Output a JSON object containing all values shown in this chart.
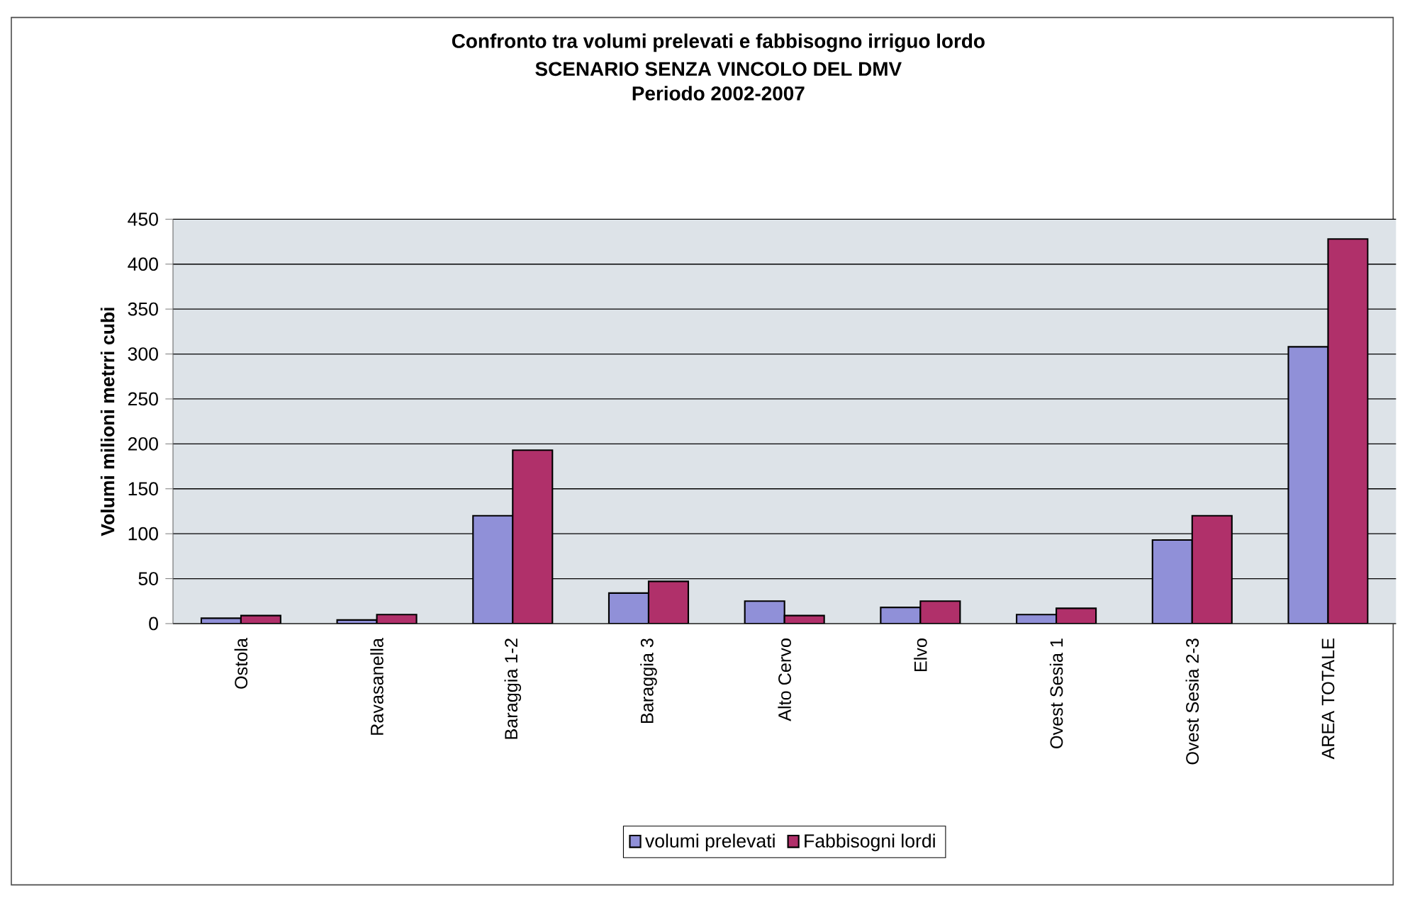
{
  "chart_data": {
    "type": "bar",
    "title": "Confronto tra volumi prelevati e fabbisogno irriguo lordo",
    "subtitle": "SCENARIO SENZA VINCOLO DEL DMV\nPeriodo 2002-2007",
    "ylabel": "Volumi milioni metrri cubi",
    "categories": [
      "Ostola",
      "Ravasanella",
      "Baraggia 1-2",
      "Baraggia 3",
      "Alto Cervo",
      "Elvo",
      "Ovest Sesia 1",
      "Ovest Sesia 2-3",
      "AREA TOTALE"
    ],
    "series": [
      {
        "name": "volumi prelevati",
        "color": "#9090d8",
        "values": [
          6,
          4,
          120,
          34,
          25,
          18,
          10,
          93,
          308
        ]
      },
      {
        "name": "Fabbisogni lordi",
        "color": "#b0306a",
        "values": [
          9,
          10,
          193,
          47,
          9,
          25,
          17,
          120,
          428
        ]
      }
    ],
    "ylim": [
      0,
      450
    ],
    "yticks": [
      0,
      50,
      100,
      150,
      200,
      250,
      300,
      350,
      400,
      450
    ],
    "grid": "y",
    "legend": "bottom"
  }
}
